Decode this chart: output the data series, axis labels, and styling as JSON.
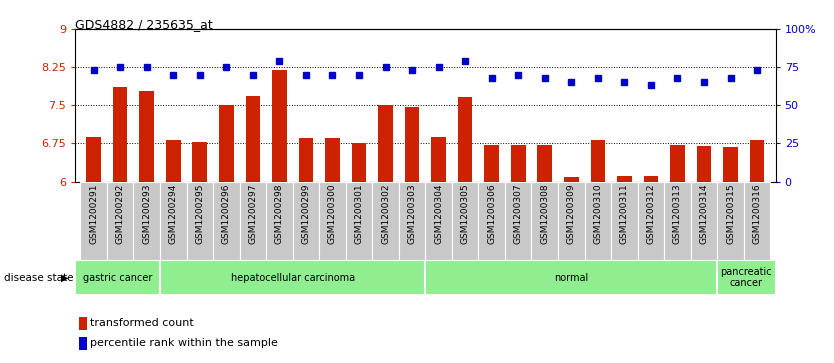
{
  "title": "GDS4882 / 235635_at",
  "samples": [
    "GSM1200291",
    "GSM1200292",
    "GSM1200293",
    "GSM1200294",
    "GSM1200295",
    "GSM1200296",
    "GSM1200297",
    "GSM1200298",
    "GSM1200299",
    "GSM1200300",
    "GSM1200301",
    "GSM1200302",
    "GSM1200303",
    "GSM1200304",
    "GSM1200305",
    "GSM1200306",
    "GSM1200307",
    "GSM1200308",
    "GSM1200309",
    "GSM1200310",
    "GSM1200311",
    "GSM1200312",
    "GSM1200313",
    "GSM1200314",
    "GSM1200315",
    "GSM1200316"
  ],
  "bar_values": [
    6.88,
    7.85,
    7.78,
    6.82,
    6.78,
    7.5,
    7.68,
    8.2,
    6.86,
    6.86,
    6.75,
    7.5,
    7.46,
    6.87,
    7.67,
    6.72,
    6.72,
    6.72,
    6.08,
    6.82,
    6.1,
    6.1,
    6.72,
    6.7,
    6.68,
    6.82
  ],
  "percentile_values": [
    73,
    75,
    75,
    70,
    70,
    75,
    70,
    79,
    70,
    70,
    70,
    75,
    73,
    75,
    79,
    68,
    70,
    68,
    65,
    68,
    65,
    63,
    68,
    65,
    68,
    73
  ],
  "bar_color": "#cc2200",
  "percentile_color": "#0000cc",
  "ylim_left": [
    6,
    9
  ],
  "ylim_right": [
    0,
    100
  ],
  "yticks_left": [
    6,
    6.75,
    7.5,
    8.25,
    9
  ],
  "ytick_labels_left": [
    "6",
    "6.75",
    "7.5",
    "8.25",
    "9"
  ],
  "yticks_right": [
    0,
    25,
    50,
    75,
    100
  ],
  "ytick_labels_right": [
    "0",
    "25",
    "50",
    "75",
    "100%"
  ],
  "disease_groups": [
    {
      "label": "gastric cancer",
      "start": 0,
      "end": 3
    },
    {
      "label": "hepatocellular carcinoma",
      "start": 3,
      "end": 13
    },
    {
      "label": "normal",
      "start": 13,
      "end": 24
    },
    {
      "label": "pancreatic\ncancer",
      "start": 24,
      "end": 26
    }
  ],
  "disease_state_label": "disease state",
  "legend_bar_label": "transformed count",
  "legend_pct_label": "percentile rank within the sample",
  "hlines": [
    6.75,
    7.5,
    8.25
  ],
  "group_color": "#90ee90",
  "xtick_bg": "#c8c8c8"
}
